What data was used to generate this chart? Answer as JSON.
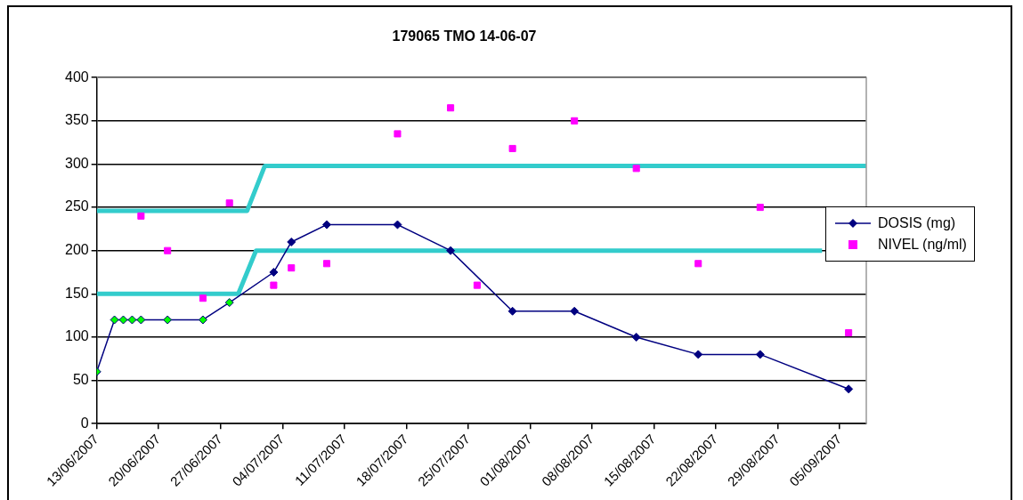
{
  "chart_data": {
    "type": "line",
    "title": "179065 TMO 14-06-07",
    "xlim": [
      "2007-06-13",
      "2007-09-08"
    ],
    "xticks": [
      {
        "value": "2007-06-13",
        "label": "13/06/2007"
      },
      {
        "value": "2007-06-20",
        "label": "20/06/2007"
      },
      {
        "value": "2007-06-27",
        "label": "27/06/2007"
      },
      {
        "value": "2007-07-04",
        "label": "04/07/2007"
      },
      {
        "value": "2007-07-11",
        "label": "11/07/2007"
      },
      {
        "value": "2007-07-18",
        "label": "18/07/2007"
      },
      {
        "value": "2007-07-25",
        "label": "25/07/2007"
      },
      {
        "value": "2007-08-01",
        "label": "01/08/2007"
      },
      {
        "value": "2007-08-08",
        "label": "08/08/2007"
      },
      {
        "value": "2007-08-15",
        "label": "15/08/2007"
      },
      {
        "value": "2007-08-22",
        "label": "22/08/2007"
      },
      {
        "value": "2007-08-29",
        "label": "29/08/2007"
      },
      {
        "value": "2007-09-05",
        "label": "05/09/2007"
      }
    ],
    "ylim": [
      0,
      400
    ],
    "yticks": [
      0,
      50,
      100,
      150,
      200,
      250,
      300,
      350,
      400
    ],
    "grid": "y",
    "legend": "right",
    "series": [
      {
        "type": "line",
        "name": "DOSIS (mg)",
        "color": "#000080",
        "marker": "diamond",
        "x": [
          "2007-06-13",
          "2007-06-15",
          "2007-06-16",
          "2007-06-17",
          "2007-06-18",
          "2007-06-21",
          "2007-06-25",
          "2007-06-28",
          "2007-07-03",
          "2007-07-05",
          "2007-07-09",
          "2007-07-17",
          "2007-07-23",
          "2007-07-30",
          "2007-08-06",
          "2007-08-13",
          "2007-08-20",
          "2007-08-27",
          "2007-09-06"
        ],
        "values": [
          60,
          120,
          120,
          120,
          120,
          120,
          120,
          140,
          175,
          210,
          230,
          230,
          200,
          130,
          130,
          100,
          80,
          80,
          40
        ],
        "colors": [
          "#00ff00",
          "#00ff00",
          "#00ff00",
          "#00ff00",
          "#00ff00",
          "#00ff00",
          "#00ff00",
          "#00ff00",
          "#000080",
          "#000080",
          "#000080",
          "#000080",
          "#000080",
          "#000080",
          "#000080",
          "#000080",
          "#000080",
          "#000080",
          "#000080"
        ]
      },
      {
        "type": "scatter",
        "name": "NIVEL (ng/ml)",
        "color": "#ff00ff",
        "marker": "square",
        "x": [
          "2007-06-18",
          "2007-06-21",
          "2007-06-25",
          "2007-06-28",
          "2007-07-03",
          "2007-07-05",
          "2007-07-09",
          "2007-07-17",
          "2007-07-23",
          "2007-07-26",
          "2007-07-30",
          "2007-08-06",
          "2007-08-13",
          "2007-08-20",
          "2007-08-27",
          "2007-09-06"
        ],
        "values": [
          240,
          200,
          145,
          255,
          160,
          180,
          185,
          335,
          365,
          160,
          318,
          350,
          295,
          185,
          250,
          105
        ]
      },
      {
        "type": "line",
        "color": "#33cccc",
        "marker": "none",
        "x": [
          "2007-06-13",
          "2007-06-29",
          "2007-07-01",
          "2007-09-03"
        ],
        "values": [
          150,
          150,
          200,
          200
        ]
      },
      {
        "type": "line",
        "color": "#33cccc",
        "marker": "none",
        "x": [
          "2007-06-13",
          "2007-06-30",
          "2007-07-02",
          "2007-09-08"
        ],
        "values": [
          246,
          246,
          298,
          298
        ]
      }
    ]
  }
}
